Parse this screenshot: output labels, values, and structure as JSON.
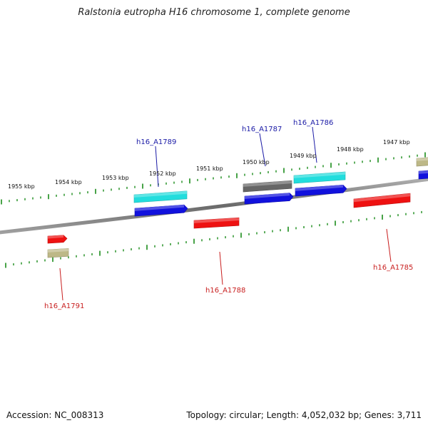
{
  "title": "Ralstonia eutropha H16 chromosome 1, complete genome",
  "footer": {
    "accession": "Accession: NC_008313",
    "summary": "Topology: circular; Length: 4,052,032 bp; Genes: 3,711"
  },
  "colors": {
    "backbone": "#808080",
    "ticks": "#1a8c1a",
    "forward_label": "#1a1aa6",
    "reverse_label": "#c81e1e",
    "red": "#ee1111",
    "blue": "#1111dd",
    "cyan": "#22dddd",
    "gray": "#666666",
    "khaki": "#bdb887"
  },
  "scale_labels": [
    {
      "label": "1955 kbp"
    },
    {
      "label": "1954 kbp"
    },
    {
      "label": "1953 kbp"
    },
    {
      "label": "1952 kbp"
    },
    {
      "label": "1951 kbp"
    },
    {
      "label": "1950 kbp"
    },
    {
      "label": "1949 kbp"
    },
    {
      "label": "1948 kbp"
    },
    {
      "label": "1947 kbp"
    }
  ],
  "gene_labels": [
    {
      "name": "h16_A1789",
      "strand": "forward"
    },
    {
      "name": "h16_A1787",
      "strand": "forward"
    },
    {
      "name": "h16_A1786",
      "strand": "forward"
    },
    {
      "name": "h16_A1791",
      "strand": "reverse"
    },
    {
      "name": "h16_A1788",
      "strand": "reverse"
    },
    {
      "name": "h16_A1785",
      "strand": "reverse"
    }
  ]
}
